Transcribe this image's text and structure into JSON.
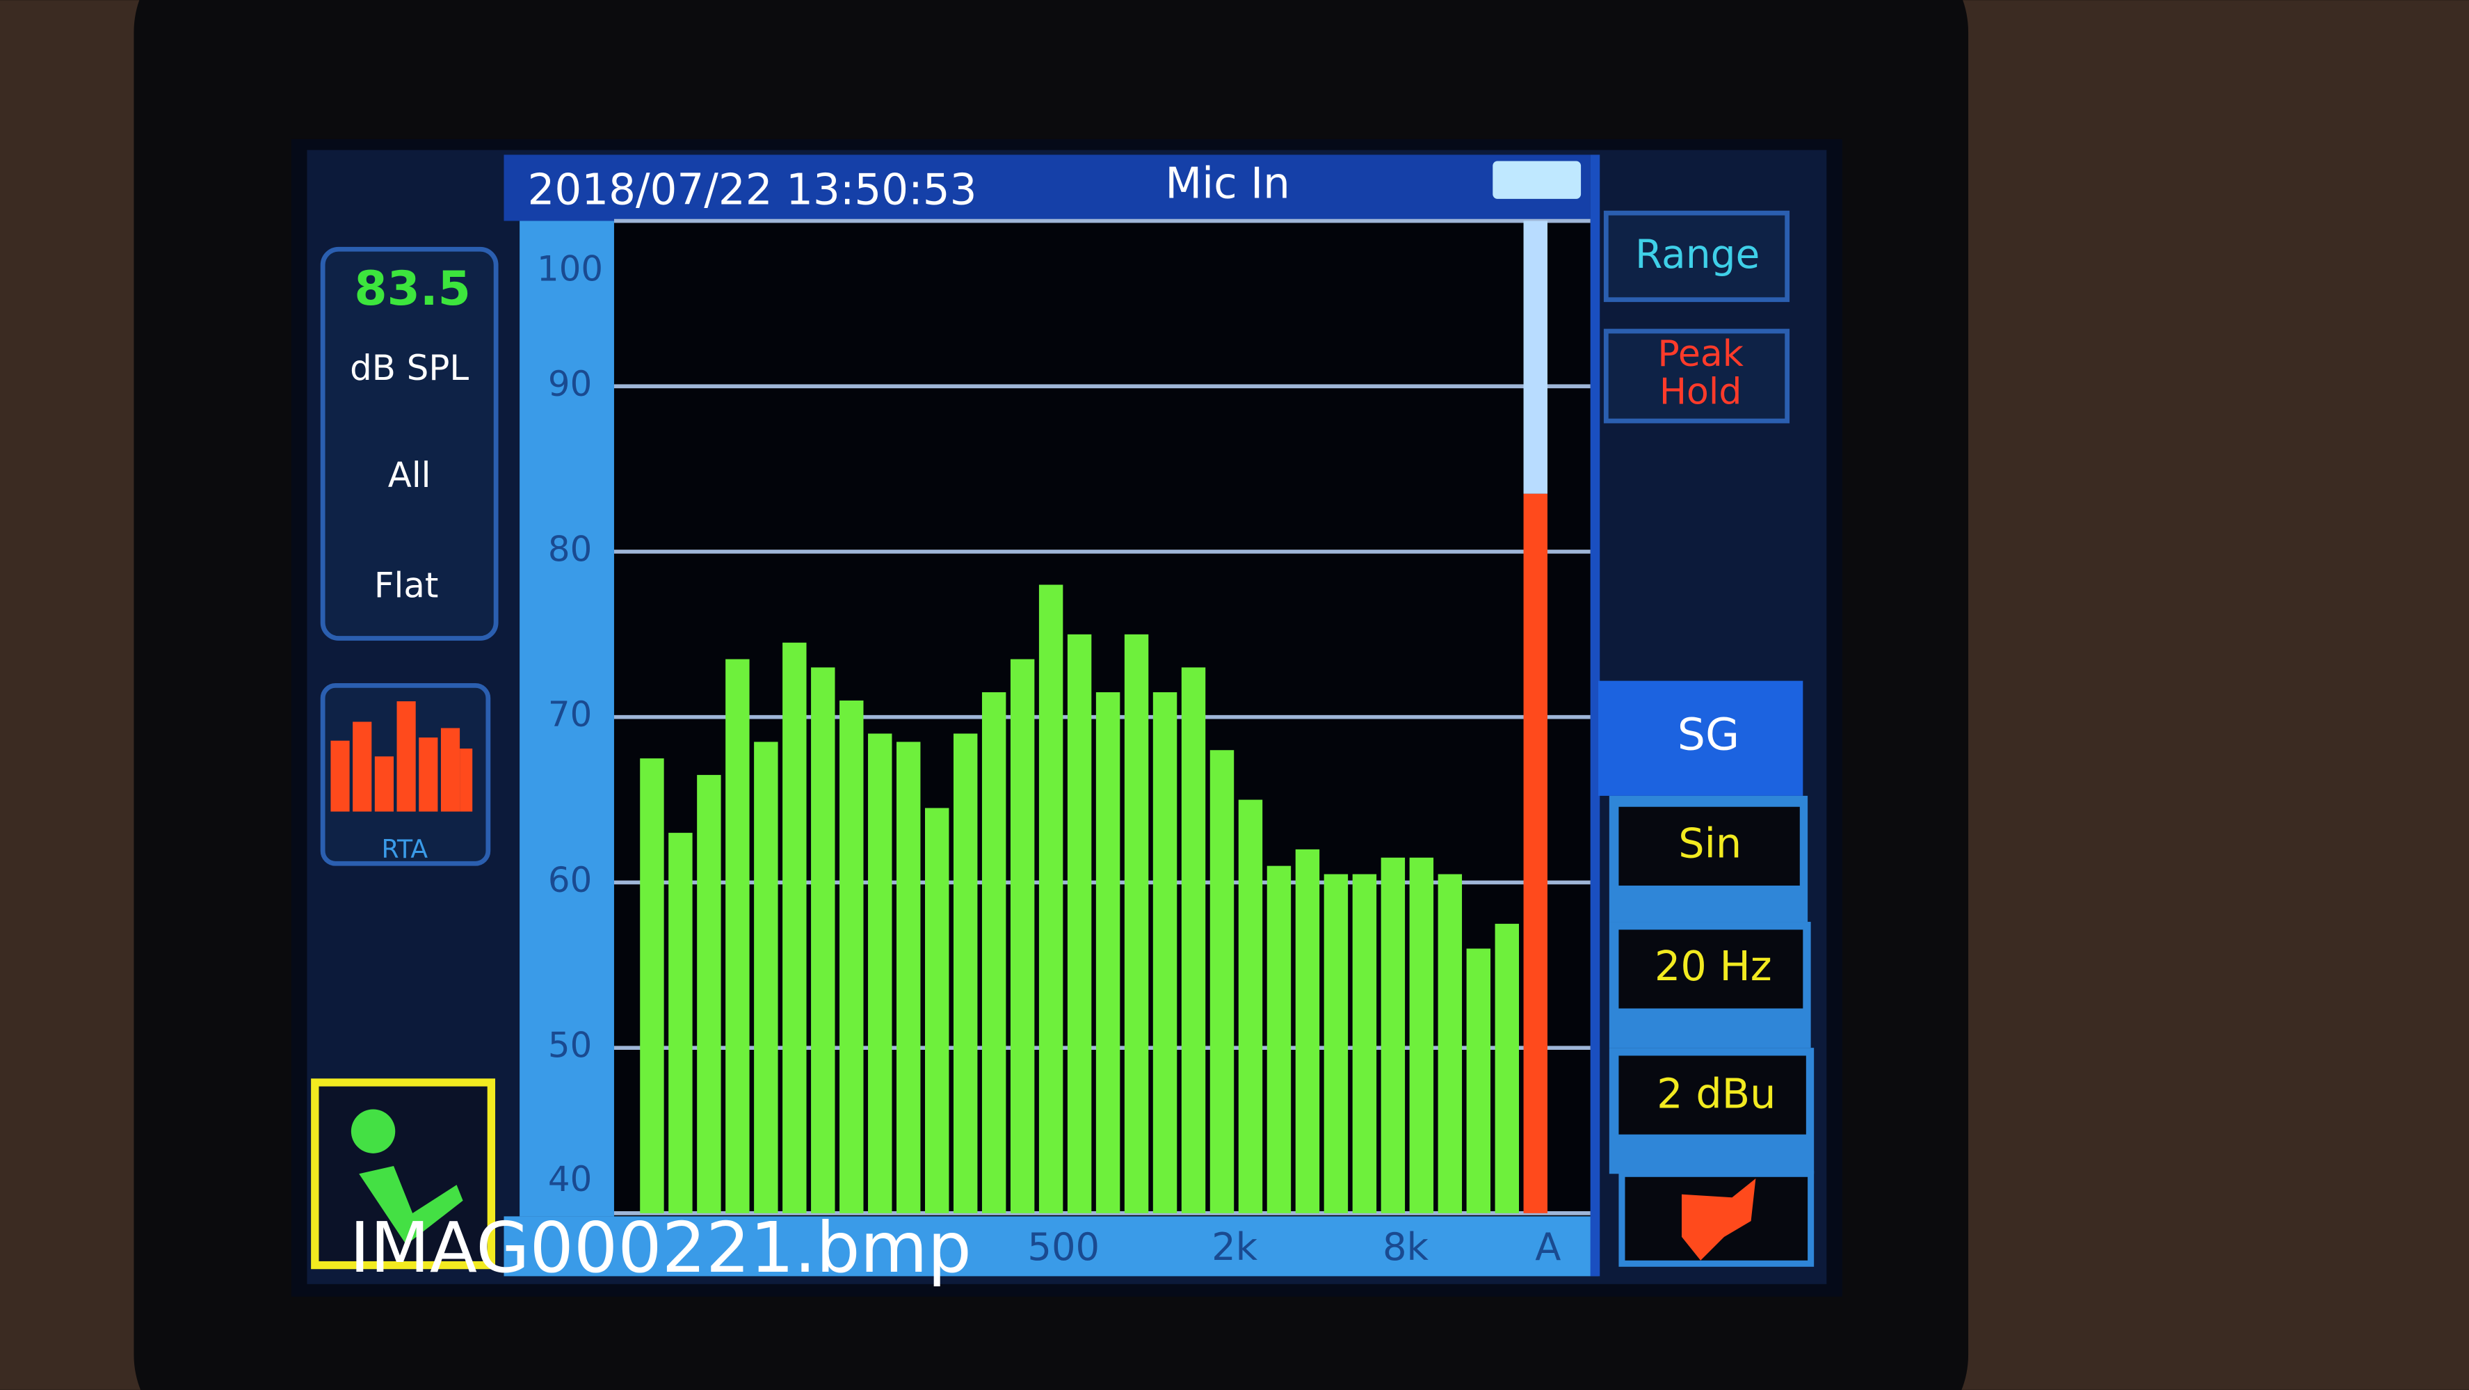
{
  "header": {
    "datetime": "2018/07/22 13:50:53",
    "input": "Mic In"
  },
  "left_panel": {
    "level": "83.5",
    "unit": "dB SPL",
    "channel": "All",
    "weighting": "Flat",
    "mode": "RTA"
  },
  "right_panel": {
    "range": "Range",
    "peak_hold": [
      "Peak",
      "Hold"
    ],
    "generator": "SG",
    "waveform": "Sin",
    "frequency": "20 Hz",
    "output_level": "2 dBu"
  },
  "filename": "IMAG000221.bmp",
  "chart_data": {
    "type": "bar",
    "categories": [
      null,
      null,
      null,
      null,
      null,
      null,
      null,
      null,
      null,
      null,
      null,
      null,
      null,
      null,
      "500",
      null,
      null,
      null,
      null,
      null,
      "2k",
      null,
      null,
      null,
      null,
      null,
      "8k",
      null,
      null,
      null,
      null,
      "A"
    ],
    "values": [
      67.5,
      63,
      66.5,
      73.5,
      68.5,
      74.5,
      73,
      71,
      69,
      68.5,
      64.5,
      69,
      71.5,
      73.5,
      78,
      75,
      71.5,
      75,
      71.5,
      73,
      68,
      65,
      61,
      62,
      60.5,
      60.5,
      61.5,
      61.5,
      60.5,
      56,
      57.5,
      83.5
    ],
    "colors": [
      "#6ef03c",
      "#6ef03c",
      "#6ef03c",
      "#6ef03c",
      "#6ef03c",
      "#6ef03c",
      "#6ef03c",
      "#6ef03c",
      "#6ef03c",
      "#6ef03c",
      "#6ef03c",
      "#6ef03c",
      "#6ef03c",
      "#6ef03c",
      "#6ef03c",
      "#6ef03c",
      "#6ef03c",
      "#6ef03c",
      "#6ef03c",
      "#6ef03c",
      "#6ef03c",
      "#6ef03c",
      "#6ef03c",
      "#6ef03c",
      "#6ef03c",
      "#6ef03c",
      "#6ef03c",
      "#6ef03c",
      "#6ef03c",
      "#6ef03c",
      "#6ef03c",
      "#ff4a1c"
    ],
    "ylim": [
      40,
      100
    ],
    "yticks": [
      40,
      50,
      60,
      70,
      80,
      90,
      100
    ],
    "grid": true
  }
}
